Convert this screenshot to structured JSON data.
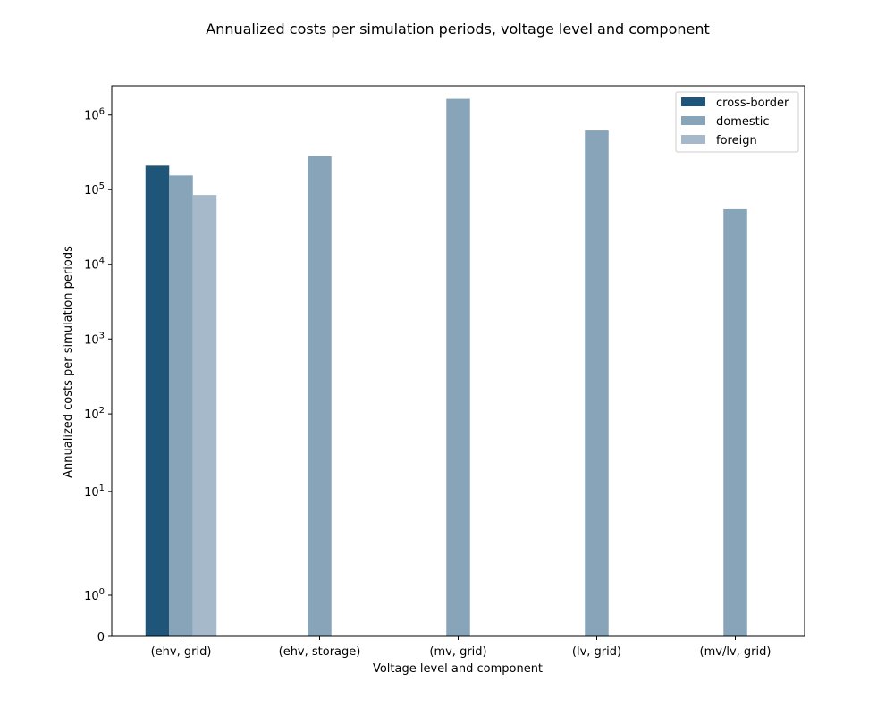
{
  "chart_data": {
    "type": "bar",
    "title": "Annualized costs per simulation periods, voltage level and component",
    "xlabel": "Voltage level and component",
    "ylabel": "Annualized costs per simulation periods",
    "y_scale": "symlog",
    "y_ticks": [
      {
        "value": 0,
        "base": "0",
        "exp": ""
      },
      {
        "value": 1,
        "base": "10",
        "exp": "0"
      },
      {
        "value": 10,
        "base": "10",
        "exp": "1"
      },
      {
        "value": 100,
        "base": "10",
        "exp": "2"
      },
      {
        "value": 1000,
        "base": "10",
        "exp": "3"
      },
      {
        "value": 10000,
        "base": "10",
        "exp": "4"
      },
      {
        "value": 100000,
        "base": "10",
        "exp": "5"
      },
      {
        "value": 1000000,
        "base": "10",
        "exp": "6"
      }
    ],
    "ylim": [
      0,
      3500000
    ],
    "categories": [
      "(ehv, grid)",
      "(ehv, storage)",
      "(mv, grid)",
      "(lv, grid)",
      "(mv/lv, grid)"
    ],
    "series": [
      {
        "name": "cross-border",
        "color": "#1f5578",
        "values": [
          210000,
          null,
          null,
          null,
          null
        ]
      },
      {
        "name": "domestic",
        "color": "#87a4b8",
        "values": [
          155000,
          280000,
          1650000,
          620000,
          55000
        ]
      },
      {
        "name": "foreign",
        "color": "#a5b9cb",
        "values": [
          85000,
          null,
          null,
          null,
          null
        ]
      }
    ],
    "legend_position": "top-right",
    "grid": false
  }
}
